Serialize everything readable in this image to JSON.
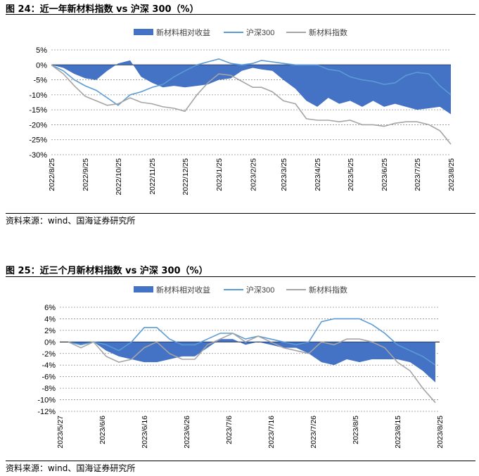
{
  "figures": [
    {
      "title": "图 24：近一年新材料指数 vs 沪深 300（%）",
      "source": "资料来源：wind、国海证券研究所"
    },
    {
      "title": "图 25：近三个月新材料指数 vs 沪深 300（%）",
      "source": "资料来源：wind、国海证券研究所"
    }
  ],
  "colors": {
    "excess": "#4472C4",
    "hs300": "#5B9BD5",
    "index": "#A5A5A5"
  },
  "chart_data": [
    {
      "type": "line",
      "title": "",
      "legend": [
        "新材料相对收益",
        "沪深300",
        "新材料指数"
      ],
      "legend_position": "top",
      "grid": "horizontal dashed",
      "y_unit": "%",
      "ylim": [
        -30,
        5
      ],
      "yticks": [
        5,
        0,
        -5,
        -10,
        -15,
        -20,
        -25,
        -30
      ],
      "ytick_labels": [
        "5%",
        "0%",
        "-5%",
        "-10%",
        "-15%",
        "-20%",
        "-25%",
        "-30%"
      ],
      "xlim": [
        "2022/8/25",
        "2023/8/25"
      ],
      "xtick_labels": [
        "2022/8/25",
        "2022/9/25",
        "2022/10/25",
        "2022/11/25",
        "2022/12/25",
        "2023/1/25",
        "2023/2/25",
        "2023/3/25",
        "2023/4/25",
        "2023/5/25",
        "2023/6/25",
        "2023/7/25",
        "2023/8/25"
      ],
      "x": [
        "2022/8/25",
        "2022/9/5",
        "2022/9/15",
        "2022/9/25",
        "2022/10/5",
        "2022/10/15",
        "2022/10/25",
        "2022/11/5",
        "2022/11/15",
        "2022/11/25",
        "2022/12/5",
        "2022/12/15",
        "2022/12/25",
        "2023/1/5",
        "2023/1/15",
        "2023/1/25",
        "2023/2/5",
        "2023/2/15",
        "2023/2/25",
        "2023/3/5",
        "2023/3/15",
        "2023/3/25",
        "2023/4/5",
        "2023/4/15",
        "2023/4/25",
        "2023/5/5",
        "2023/5/15",
        "2023/5/25",
        "2023/6/5",
        "2023/6/15",
        "2023/6/25",
        "2023/7/5",
        "2023/7/15",
        "2023/7/25",
        "2023/8/5",
        "2023/8/15",
        "2023/8/25"
      ],
      "series": [
        {
          "name": "新材料相对收益",
          "kind": "area",
          "values": [
            0,
            -1,
            -3,
            -4.5,
            -5,
            -2,
            0.5,
            1.5,
            -4,
            -6,
            -7.5,
            -7,
            -7.5,
            -7,
            -6.5,
            -5,
            -4.5,
            -2,
            -1,
            -1.5,
            -2,
            -5,
            -8,
            -12,
            -14,
            -11,
            -13,
            -12,
            -14,
            -12,
            -14,
            -13,
            -14,
            -15,
            -14.5,
            -14,
            -16.5
          ]
        },
        {
          "name": "沪深300",
          "kind": "line",
          "values": [
            0,
            -2,
            -5,
            -7,
            -8.5,
            -11,
            -13.5,
            -10,
            -9,
            -7.5,
            -6.5,
            -4,
            -2,
            0,
            1,
            2,
            0.5,
            0,
            0.5,
            1.5,
            1,
            0.5,
            0,
            0,
            0,
            -1.5,
            -2,
            -4,
            -5,
            -5.5,
            -6.5,
            -6,
            -3.5,
            -2.5,
            -3,
            -7,
            -10
          ]
        },
        {
          "name": "新材料指数",
          "kind": "line",
          "values": [
            0,
            -3,
            -7,
            -10.5,
            -12,
            -13.5,
            -13,
            -11,
            -12.5,
            -13,
            -14,
            -14.5,
            -15.5,
            -10,
            -6,
            -3,
            -3.5,
            -5.5,
            -7.5,
            -7.5,
            -9,
            -12,
            -13,
            -18,
            -18.5,
            -18.5,
            -19,
            -18.5,
            -20,
            -20,
            -20.5,
            -19.5,
            -19,
            -19,
            -20,
            -22,
            -26.5
          ]
        }
      ]
    },
    {
      "type": "line",
      "title": "",
      "legend": [
        "新材料相对收益",
        "沪深300",
        "新材料指数"
      ],
      "legend_position": "top",
      "grid": "horizontal dashed",
      "y_unit": "%",
      "ylim": [
        -12,
        6
      ],
      "yticks": [
        6,
        4,
        2,
        0,
        -2,
        -4,
        -6,
        -8,
        -10,
        -12
      ],
      "ytick_labels": [
        "6%",
        "4%",
        "2%",
        "0%",
        "-2%",
        "-4%",
        "-6%",
        "-8%",
        "-10%",
        "-12%"
      ],
      "xlim": [
        "2023/5/27",
        "2023/8/25"
      ],
      "xtick_labels": [
        "2023/5/27",
        "2023/6/6",
        "2023/6/16",
        "2023/6/26",
        "2023/7/6",
        "2023/7/16",
        "2023/7/26",
        "2023/8/5",
        "2023/8/15",
        "2023/8/25"
      ],
      "x": [
        "2023/5/29",
        "2023/6/1",
        "2023/6/4",
        "2023/6/7",
        "2023/6/10",
        "2023/6/13",
        "2023/6/16",
        "2023/6/19",
        "2023/6/22",
        "2023/6/25",
        "2023/6/28",
        "2023/7/1",
        "2023/7/4",
        "2023/7/7",
        "2023/7/10",
        "2023/7/13",
        "2023/7/16",
        "2023/7/19",
        "2023/7/22",
        "2023/7/25",
        "2023/7/28",
        "2023/7/31",
        "2023/8/3",
        "2023/8/6",
        "2023/8/9",
        "2023/8/12",
        "2023/8/15",
        "2023/8/18",
        "2023/8/21",
        "2023/8/24"
      ],
      "series": [
        {
          "name": "新材料相对收益",
          "kind": "area",
          "values": [
            0,
            -0.5,
            0,
            -1.5,
            -2.5,
            -3,
            -3.5,
            -3.5,
            -3,
            -2.5,
            -2.5,
            -1,
            0.5,
            0.5,
            -0.5,
            0,
            -0.5,
            -1,
            -1,
            -2,
            -3.5,
            -4,
            -3,
            -3.5,
            -3,
            -3,
            -3,
            -3.5,
            -5,
            -7
          ]
        },
        {
          "name": "沪深300",
          "kind": "line",
          "values": [
            0,
            -0.5,
            0,
            -0.5,
            -1.5,
            0,
            2.5,
            2.5,
            0.5,
            -0.5,
            -0.5,
            0.5,
            1.5,
            1.5,
            0.5,
            1,
            0.5,
            0,
            -0.5,
            0,
            3.5,
            4,
            4,
            4,
            3,
            1.5,
            -0.5,
            -1.5,
            -2.5,
            -4
          ]
        },
        {
          "name": "新材料指数",
          "kind": "line",
          "values": [
            0,
            -1,
            0,
            -2.5,
            -3.5,
            -3,
            -1,
            0,
            -2,
            -3,
            -3,
            -0.5,
            0.5,
            1.5,
            0,
            1,
            0,
            -1,
            -1.5,
            -2,
            0,
            -0.5,
            0.5,
            0.5,
            0,
            -1,
            -3.5,
            -5,
            -8,
            -10.5
          ]
        }
      ]
    }
  ]
}
